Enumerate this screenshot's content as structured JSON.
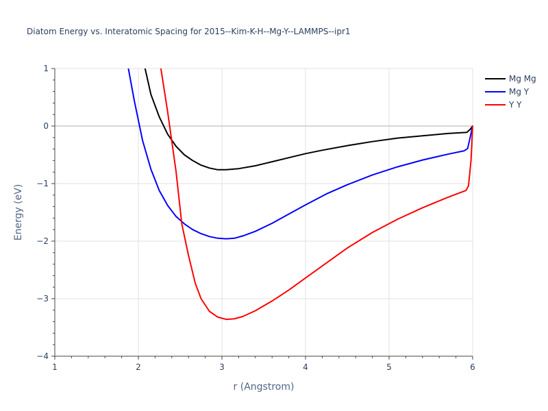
{
  "chart_data": {
    "type": "line",
    "title": "Diatom Energy vs. Interatomic Spacing for 2015--Kim-K-H--Mg-Y--LAMMPS--ipr1",
    "xlabel": "r (Angstrom)",
    "ylabel": "Energy (eV)",
    "xlim": [
      1,
      6
    ],
    "ylim": [
      -4,
      1
    ],
    "x_ticks": [
      "1",
      "2",
      "3",
      "4",
      "5",
      "6"
    ],
    "y_ticks": [
      "1",
      "0",
      "−1",
      "−2",
      "−3",
      "−4"
    ],
    "grid": true,
    "legend_position": "top-right",
    "series": [
      {
        "name": "Mg Mg",
        "color": "#000000",
        "x": [
          2.08,
          2.15,
          2.25,
          2.35,
          2.45,
          2.55,
          2.65,
          2.75,
          2.85,
          2.95,
          3.05,
          3.2,
          3.4,
          3.6,
          3.8,
          4.0,
          4.2,
          4.5,
          4.8,
          5.1,
          5.4,
          5.7,
          5.93,
          5.97,
          6.0
        ],
        "y": [
          1.0,
          0.55,
          0.16,
          -0.14,
          -0.35,
          -0.5,
          -0.6,
          -0.68,
          -0.73,
          -0.76,
          -0.76,
          -0.74,
          -0.69,
          -0.62,
          -0.55,
          -0.48,
          -0.42,
          -0.34,
          -0.27,
          -0.21,
          -0.17,
          -0.13,
          -0.11,
          -0.06,
          0.0
        ]
      },
      {
        "name": "Mg Y",
        "color": "#0000ff",
        "x": [
          1.88,
          1.95,
          2.05,
          2.15,
          2.25,
          2.35,
          2.45,
          2.55,
          2.65,
          2.75,
          2.85,
          2.95,
          3.05,
          3.15,
          3.25,
          3.4,
          3.6,
          3.8,
          4.0,
          4.25,
          4.5,
          4.8,
          5.1,
          5.4,
          5.7,
          5.9,
          5.94,
          5.97,
          6.0
        ],
        "y": [
          1.0,
          0.45,
          -0.25,
          -0.75,
          -1.12,
          -1.38,
          -1.57,
          -1.7,
          -1.8,
          -1.87,
          -1.92,
          -1.95,
          -1.96,
          -1.95,
          -1.91,
          -1.83,
          -1.69,
          -1.53,
          -1.37,
          -1.18,
          -1.02,
          -0.85,
          -0.71,
          -0.59,
          -0.49,
          -0.43,
          -0.39,
          -0.2,
          0.0
        ]
      },
      {
        "name": "Y Y",
        "color": "#ff0000",
        "x": [
          2.27,
          2.35,
          2.45,
          2.52,
          2.6,
          2.68,
          2.75,
          2.85,
          2.95,
          3.05,
          3.15,
          3.25,
          3.4,
          3.6,
          3.8,
          4.0,
          4.25,
          4.5,
          4.8,
          5.1,
          5.4,
          5.7,
          5.92,
          5.95,
          5.98,
          6.0
        ],
        "y": [
          1.0,
          0.25,
          -0.78,
          -1.7,
          -2.25,
          -2.73,
          -3.0,
          -3.22,
          -3.32,
          -3.36,
          -3.35,
          -3.31,
          -3.21,
          -3.04,
          -2.85,
          -2.64,
          -2.38,
          -2.12,
          -1.85,
          -1.62,
          -1.42,
          -1.24,
          -1.12,
          -1.04,
          -0.6,
          0.0
        ]
      }
    ]
  }
}
